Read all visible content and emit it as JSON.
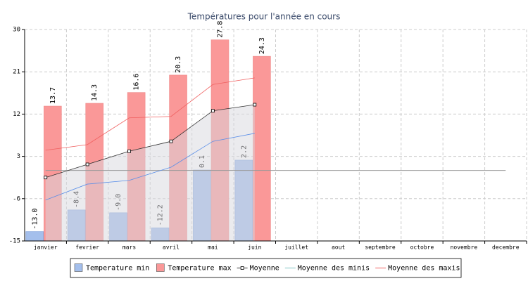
{
  "chart_data": {
    "type": "bar",
    "title": "Températures pour l'année en cours",
    "categories": [
      "janvier",
      "fevrier",
      "mars",
      "avril",
      "mai",
      "juin",
      "juillet",
      "aout",
      "septembre",
      "octobre",
      "novembre",
      "decembre"
    ],
    "series": [
      {
        "name": "Temperature min",
        "color": "#a4bfec",
        "values": [
          -13.0,
          -8.4,
          -9.0,
          -12.2,
          0.1,
          2.2,
          null,
          null,
          null,
          null,
          null,
          null
        ],
        "value_labels": [
          "-13.0",
          "-8.4",
          "-9.0",
          "-12.2",
          "0.1",
          "2.2",
          null,
          null,
          null,
          null,
          null,
          null
        ]
      },
      {
        "name": "Temperature max",
        "color": "#fa9898",
        "values": [
          13.7,
          14.3,
          16.6,
          20.3,
          27.8,
          24.3,
          null,
          null,
          null,
          null,
          null,
          null
        ]
      },
      {
        "name": "Moyenne",
        "type": "line",
        "color": "#333333",
        "marker": "square",
        "area": true,
        "values": [
          -1.5,
          1.3,
          4.1,
          6.2,
          12.7,
          14.0,
          null,
          null,
          null,
          null,
          null,
          null
        ]
      },
      {
        "name": "Moyenne des minis",
        "type": "line",
        "color": "#5b8fe8",
        "legend_color": "#7fc4c4",
        "values": [
          -6.3,
          -2.9,
          -2.1,
          0.7,
          6.2,
          7.9,
          null,
          null,
          null,
          null,
          null,
          null
        ]
      },
      {
        "name": "Moyenne des maxis",
        "type": "line",
        "color": "#f06060",
        "values": [
          4.3,
          5.5,
          11.2,
          11.5,
          18.3,
          19.7,
          null,
          null,
          null,
          null,
          null,
          null
        ]
      }
    ],
    "reference_line": 0,
    "ylim": [
      -15,
      30
    ],
    "yticks": [
      -15,
      -6,
      3,
      12,
      21,
      30
    ],
    "grid": true,
    "legend": "bottom"
  }
}
